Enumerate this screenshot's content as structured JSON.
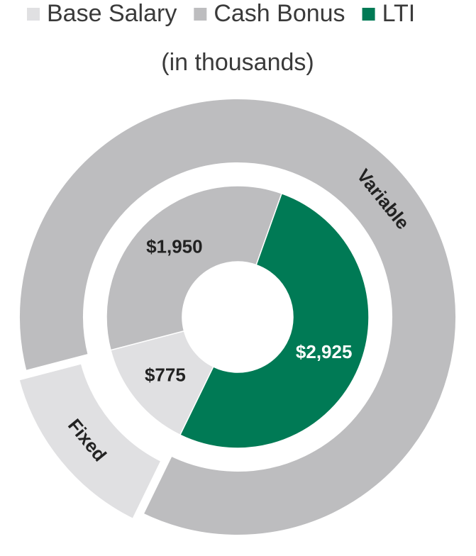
{
  "chart_data": {
    "type": "donut",
    "subtitle": "(in thousands)",
    "categories": [
      "Base Salary",
      "Cash Bonus",
      "LTI"
    ],
    "values": [
      775,
      1950,
      2925
    ],
    "value_labels": [
      "$775",
      "$1,950",
      "$2,925"
    ],
    "colors": [
      "#e0e0e2",
      "#bdbdbf",
      "#007a55"
    ],
    "outer": {
      "categories": [
        "Fixed",
        "Variable"
      ],
      "values": [
        775,
        4875
      ],
      "colors": [
        "#e0e0e2",
        "#bdbdbf"
      ]
    }
  }
}
